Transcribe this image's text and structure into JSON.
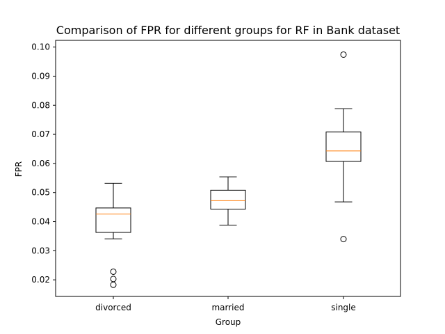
{
  "chart_data": {
    "type": "box",
    "title": "Comparison of FPR for different groups for RF in Bank dataset",
    "xlabel": "Group",
    "ylabel": "FPR",
    "categories": [
      "divorced",
      "married",
      "single"
    ],
    "ylim": [
      0.0143,
      0.1023
    ],
    "yticks": [
      0.02,
      0.03,
      0.04,
      0.05,
      0.06,
      0.07,
      0.08,
      0.09,
      0.1
    ],
    "ytick_labels": [
      "0.02",
      "0.03",
      "0.04",
      "0.05",
      "0.06",
      "0.07",
      "0.08",
      "0.09",
      "0.10"
    ],
    "grid": false,
    "legend": "none",
    "colors": {
      "box": "#000000",
      "median": "#ff7f0e",
      "axes": "#000000",
      "background": "#ffffff"
    },
    "boxes": [
      {
        "category": "divorced",
        "whisker_low": 0.0341,
        "q1": 0.0363,
        "median": 0.0426,
        "q3": 0.0447,
        "whisker_high": 0.0532,
        "outliers": [
          0.0228,
          0.0203,
          0.0183
        ]
      },
      {
        "category": "married",
        "whisker_low": 0.0388,
        "q1": 0.0443,
        "median": 0.0472,
        "q3": 0.0508,
        "whisker_high": 0.0554,
        "outliers": []
      },
      {
        "category": "single",
        "whisker_low": 0.0468,
        "q1": 0.0607,
        "median": 0.0643,
        "q3": 0.0708,
        "whisker_high": 0.0788,
        "outliers": [
          0.0974,
          0.034
        ]
      }
    ]
  }
}
